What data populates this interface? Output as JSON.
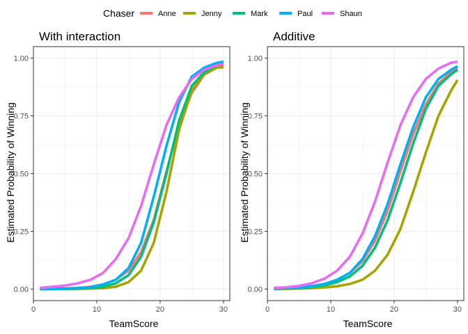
{
  "legend": {
    "title": "Chaser",
    "entries": [
      "Anne",
      "Jenny",
      "Mark",
      "Paul",
      "Shaun"
    ]
  },
  "colors": {
    "Anne": "#F8766D",
    "Jenny": "#A3A500",
    "Mark": "#00BF7D",
    "Paul": "#00B0F6",
    "Shaun": "#E76BF3"
  },
  "chart_data": [
    {
      "type": "line",
      "title": "With interaction",
      "xlabel": "TeamScore",
      "ylabel": "Estimated Probability of Winning",
      "xlim": [
        0,
        31
      ],
      "ylim": [
        0,
        1
      ],
      "xticks": [
        0,
        10,
        20,
        30
      ],
      "xtick_labels": [
        "0",
        "10",
        "20",
        "30"
      ],
      "yticks": [
        0,
        0.25,
        0.5,
        0.75,
        1
      ],
      "ytick_labels": [
        "0.00",
        "0.25",
        "0.50",
        "0.75",
        "1.00"
      ],
      "grid": true,
      "x": [
        1,
        3,
        5,
        7,
        9,
        11,
        13,
        15,
        17,
        19,
        21,
        23,
        25,
        27,
        29,
        30
      ],
      "series": [
        {
          "name": "Anne",
          "values": [
            0.001,
            0.002,
            0.003,
            0.005,
            0.01,
            0.02,
            0.04,
            0.08,
            0.16,
            0.3,
            0.51,
            0.71,
            0.85,
            0.93,
            0.96,
            0.97
          ]
        },
        {
          "name": "Jenny",
          "values": [
            0.0,
            0.0,
            0.0,
            0.001,
            0.002,
            0.004,
            0.01,
            0.03,
            0.08,
            0.2,
            0.42,
            0.69,
            0.86,
            0.93,
            0.96,
            0.96
          ]
        },
        {
          "name": "Mark",
          "values": [
            0.0,
            0.0,
            0.001,
            0.002,
            0.005,
            0.01,
            0.025,
            0.06,
            0.14,
            0.29,
            0.5,
            0.73,
            0.88,
            0.94,
            0.97,
            0.975
          ]
        },
        {
          "name": "Paul",
          "values": [
            0.0,
            0.001,
            0.002,
            0.004,
            0.008,
            0.02,
            0.04,
            0.09,
            0.2,
            0.4,
            0.62,
            0.81,
            0.92,
            0.96,
            0.98,
            0.985
          ]
        },
        {
          "name": "Shaun",
          "values": [
            0.005,
            0.01,
            0.015,
            0.025,
            0.04,
            0.07,
            0.13,
            0.22,
            0.36,
            0.54,
            0.71,
            0.83,
            0.91,
            0.95,
            0.97,
            0.975
          ]
        }
      ]
    },
    {
      "type": "line",
      "title": "Additive",
      "xlabel": "TeamScore",
      "ylabel": "Estimated Probability of Winning",
      "xlim": [
        0,
        31
      ],
      "ylim": [
        0,
        1
      ],
      "xticks": [
        0,
        10,
        20,
        30
      ],
      "xtick_labels": [
        "0",
        "10",
        "20",
        "30"
      ],
      "yticks": [
        0,
        0.25,
        0.5,
        0.75,
        1
      ],
      "ytick_labels": [
        "0.00",
        "0.25",
        "0.50",
        "0.75",
        "1.00"
      ],
      "grid": true,
      "x": [
        1,
        3,
        5,
        7,
        9,
        11,
        13,
        15,
        17,
        19,
        21,
        23,
        25,
        27,
        29,
        30
      ],
      "series": [
        {
          "name": "Anne",
          "values": [
            0.003,
            0.005,
            0.008,
            0.013,
            0.022,
            0.04,
            0.07,
            0.12,
            0.21,
            0.34,
            0.51,
            0.67,
            0.8,
            0.89,
            0.94,
            0.96
          ]
        },
        {
          "name": "Jenny",
          "values": [
            0.0,
            0.001,
            0.002,
            0.004,
            0.007,
            0.012,
            0.022,
            0.04,
            0.08,
            0.15,
            0.26,
            0.42,
            0.59,
            0.75,
            0.86,
            0.905
          ]
        },
        {
          "name": "Mark",
          "values": [
            0.001,
            0.003,
            0.005,
            0.009,
            0.016,
            0.03,
            0.055,
            0.1,
            0.18,
            0.3,
            0.46,
            0.63,
            0.78,
            0.88,
            0.93,
            0.95
          ]
        },
        {
          "name": "Paul",
          "values": [
            0.002,
            0.004,
            0.007,
            0.012,
            0.022,
            0.04,
            0.07,
            0.13,
            0.23,
            0.37,
            0.54,
            0.7,
            0.83,
            0.91,
            0.95,
            0.965
          ]
        },
        {
          "name": "Shaun",
          "values": [
            0.005,
            0.008,
            0.014,
            0.025,
            0.045,
            0.08,
            0.14,
            0.24,
            0.38,
            0.55,
            0.71,
            0.83,
            0.91,
            0.955,
            0.98,
            0.985
          ]
        }
      ]
    }
  ]
}
